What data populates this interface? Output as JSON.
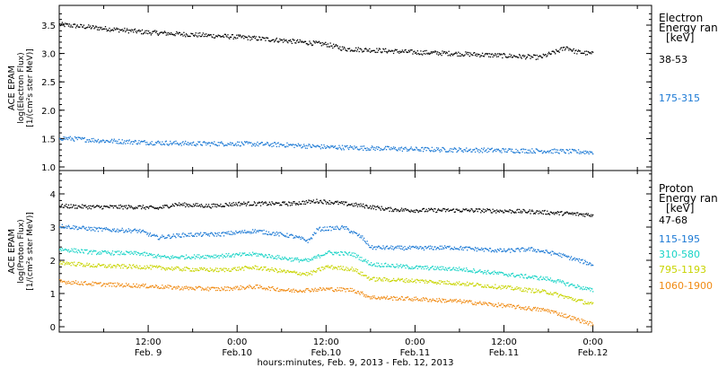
{
  "xlabel": "hours:minutes, Feb.  9, 2013 - Feb. 12, 2013",
  "x_ticks": [
    {
      "t": 0.5,
      "time": "12:00",
      "date": "Feb. 9"
    },
    {
      "t": 1.0,
      "time": "0:00",
      "date": "Feb.10"
    },
    {
      "t": 1.5,
      "time": "12:00",
      "date": "Feb.10"
    },
    {
      "t": 2.0,
      "time": "0:00",
      "date": "Feb.11"
    },
    {
      "t": 2.5,
      "time": "12:00",
      "date": "Feb.11"
    },
    {
      "t": 3.0,
      "time": "0:00",
      "date": "Feb.12"
    }
  ],
  "chart_data": [
    {
      "type": "scatter",
      "ylabel_lines": [
        "ACE EPAM",
        "log(Electron Flux)",
        "[1/(cm²s ster MeV)]"
      ],
      "xlim_days": [
        0,
        3.33
      ],
      "ylim": [
        0.9,
        3.8
      ],
      "yticks": [
        "1.0",
        "1.5",
        "2.0",
        "2.5",
        "3.0",
        "3.5"
      ],
      "legend_title": [
        "Electron",
        "Energy range",
        "[keV]"
      ],
      "series": [
        {
          "name": "38-53",
          "color": "#000000",
          "points": [
            [
              0.0,
              3.52
            ],
            [
              0.25,
              3.45
            ],
            [
              0.5,
              3.38
            ],
            [
              0.75,
              3.34
            ],
            [
              1.0,
              3.3
            ],
            [
              1.25,
              3.24
            ],
            [
              1.5,
              3.17
            ],
            [
              1.6,
              3.09
            ],
            [
              1.75,
              3.07
            ],
            [
              2.0,
              3.03
            ],
            [
              2.2,
              3.01
            ],
            [
              2.5,
              2.97
            ],
            [
              2.7,
              2.94
            ],
            [
              2.8,
              3.05
            ],
            [
              2.85,
              3.12
            ],
            [
              2.9,
              3.04
            ],
            [
              3.0,
              3.0
            ]
          ]
        },
        {
          "name": "175-315",
          "color": "#1a78d4",
          "points": [
            [
              0.0,
              1.52
            ],
            [
              0.25,
              1.47
            ],
            [
              0.5,
              1.44
            ],
            [
              0.75,
              1.42
            ],
            [
              1.0,
              1.42
            ],
            [
              1.25,
              1.4
            ],
            [
              1.5,
              1.36
            ],
            [
              1.75,
              1.34
            ],
            [
              2.0,
              1.32
            ],
            [
              2.25,
              1.31
            ],
            [
              2.5,
              1.3
            ],
            [
              2.75,
              1.29
            ],
            [
              3.0,
              1.27
            ]
          ]
        }
      ]
    },
    {
      "type": "scatter",
      "ylabel_lines": [
        "ACE EPAM",
        "log(Proton Flux)",
        "[1/(cm²s ster MeV)]"
      ],
      "xlim_days": [
        0,
        3.33
      ],
      "ylim": [
        -0.2,
        5.0
      ],
      "yticks": [
        "0",
        "1",
        "2",
        "3",
        "4"
      ],
      "legend_title": [
        "Proton",
        "Energy range",
        "[keV]"
      ],
      "series": [
        {
          "name": "47-68",
          "color": "#000000",
          "points": [
            [
              0.0,
              3.65
            ],
            [
              0.2,
              3.62
            ],
            [
              0.45,
              3.62
            ],
            [
              0.55,
              3.58
            ],
            [
              0.65,
              3.7
            ],
            [
              0.85,
              3.65
            ],
            [
              1.0,
              3.72
            ],
            [
              1.3,
              3.72
            ],
            [
              1.45,
              3.8
            ],
            [
              1.55,
              3.75
            ],
            [
              1.7,
              3.66
            ],
            [
              1.85,
              3.55
            ],
            [
              2.0,
              3.52
            ],
            [
              2.3,
              3.52
            ],
            [
              2.5,
              3.5
            ],
            [
              2.65,
              3.48
            ],
            [
              3.0,
              3.38
            ]
          ]
        },
        {
          "name": "115-195",
          "color": "#1a78d4",
          "points": [
            [
              0.0,
              3.05
            ],
            [
              0.2,
              2.95
            ],
            [
              0.45,
              2.9
            ],
            [
              0.55,
              2.7
            ],
            [
              0.7,
              2.78
            ],
            [
              0.9,
              2.8
            ],
            [
              1.1,
              2.9
            ],
            [
              1.3,
              2.75
            ],
            [
              1.4,
              2.6
            ],
            [
              1.45,
              2.95
            ],
            [
              1.6,
              3.0
            ],
            [
              1.7,
              2.7
            ],
            [
              1.75,
              2.4
            ],
            [
              2.0,
              2.38
            ],
            [
              2.2,
              2.4
            ],
            [
              2.5,
              2.3
            ],
            [
              2.65,
              2.35
            ],
            [
              2.8,
              2.2
            ],
            [
              3.0,
              1.88
            ]
          ]
        },
        {
          "name": "310-580",
          "color": "#17d3c6",
          "points": [
            [
              0.0,
              2.35
            ],
            [
              0.2,
              2.25
            ],
            [
              0.45,
              2.22
            ],
            [
              0.6,
              2.1
            ],
            [
              0.9,
              2.15
            ],
            [
              1.1,
              2.2
            ],
            [
              1.3,
              2.05
            ],
            [
              1.4,
              2.0
            ],
            [
              1.5,
              2.25
            ],
            [
              1.65,
              2.2
            ],
            [
              1.75,
              1.9
            ],
            [
              2.0,
              1.8
            ],
            [
              2.25,
              1.75
            ],
            [
              2.5,
              1.6
            ],
            [
              2.75,
              1.45
            ],
            [
              3.0,
              1.1
            ]
          ]
        },
        {
          "name": "795-1193",
          "color": "#c8d400",
          "points": [
            [
              0.0,
              1.95
            ],
            [
              0.2,
              1.85
            ],
            [
              0.45,
              1.82
            ],
            [
              0.7,
              1.75
            ],
            [
              0.9,
              1.72
            ],
            [
              1.1,
              1.8
            ],
            [
              1.3,
              1.65
            ],
            [
              1.4,
              1.6
            ],
            [
              1.5,
              1.82
            ],
            [
              1.65,
              1.75
            ],
            [
              1.75,
              1.45
            ],
            [
              2.0,
              1.4
            ],
            [
              2.25,
              1.32
            ],
            [
              2.5,
              1.2
            ],
            [
              2.75,
              1.05
            ],
            [
              3.0,
              0.68
            ]
          ]
        },
        {
          "name": "1060-1900",
          "color": "#f08a12",
          "points": [
            [
              0.0,
              1.38
            ],
            [
              0.2,
              1.3
            ],
            [
              0.45,
              1.25
            ],
            [
              0.7,
              1.18
            ],
            [
              0.9,
              1.15
            ],
            [
              1.1,
              1.22
            ],
            [
              1.3,
              1.1
            ],
            [
              1.5,
              1.15
            ],
            [
              1.65,
              1.12
            ],
            [
              1.75,
              0.9
            ],
            [
              2.0,
              0.85
            ],
            [
              2.25,
              0.78
            ],
            [
              2.5,
              0.65
            ],
            [
              2.75,
              0.5
            ],
            [
              3.0,
              0.08
            ]
          ]
        }
      ]
    }
  ]
}
